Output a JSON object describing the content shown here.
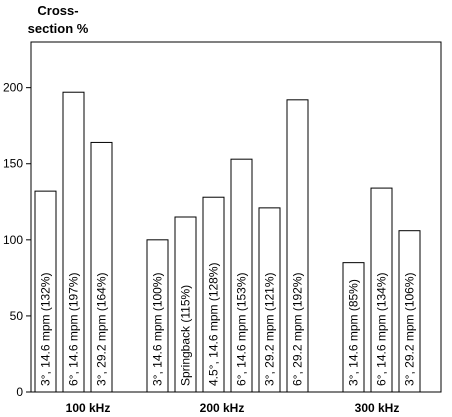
{
  "chart_data": {
    "type": "bar",
    "ylabel": "Cross-\nsection %",
    "ylim": [
      0,
      230
    ],
    "yticks": [
      0,
      50,
      100,
      150,
      200
    ],
    "grid": false,
    "groups": [
      {
        "label": "100 kHz",
        "bars": [
          {
            "label": "3°, 14.6 mpm (132%)",
            "value": 132
          },
          {
            "label": "6°, 14.6 mpm (197%)",
            "value": 197
          },
          {
            "label": "3°, 29.2 mpm (164%)",
            "value": 164
          }
        ]
      },
      {
        "label": "200 kHz",
        "bars": [
          {
            "label": "3°, 14.6 mpm (100%)",
            "value": 100
          },
          {
            "label": "Springback (115%)",
            "value": 115
          },
          {
            "label": "4.5°, 14.6 mpm (128%)",
            "value": 128
          },
          {
            "label": "6°, 14.6 mpm (153%)",
            "value": 153
          },
          {
            "label": "3°, 29.2 mpm (121%)",
            "value": 121
          },
          {
            "label": "6°, 29.2 mpm (192%)",
            "value": 192
          }
        ]
      },
      {
        "label": "300 kHz",
        "bars": [
          {
            "label": "3°, 14.6 mpm (85%)",
            "value": 85
          },
          {
            "label": "6°, 14.6 mpm (134%)",
            "value": 134
          },
          {
            "label": "3°, 29.2 mpm (106%)",
            "value": 106
          }
        ]
      }
    ]
  }
}
